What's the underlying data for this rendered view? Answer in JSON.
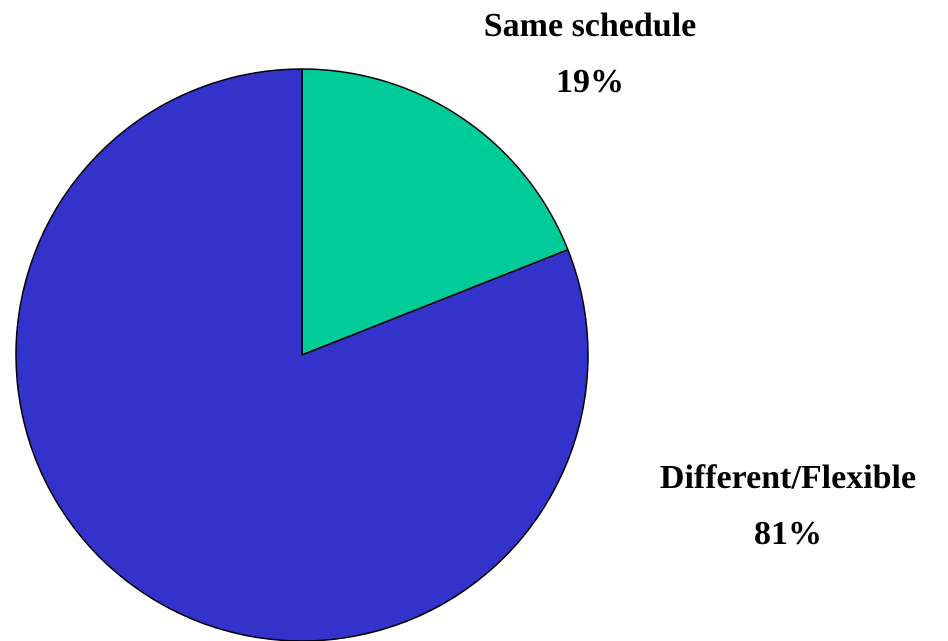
{
  "chart_data": {
    "type": "pie",
    "title": "",
    "start_angle": "12 o'clock, clockwise",
    "slices": [
      {
        "label": "Same schedule",
        "value": 19,
        "value_label": "19%",
        "color": "#00CC99"
      },
      {
        "label": "Different/Flexible",
        "value": 81,
        "value_label": "81%",
        "color": "#3333CC"
      }
    ],
    "slice_outline_color": "#000000",
    "label_color": "#000000",
    "legend": "none"
  }
}
